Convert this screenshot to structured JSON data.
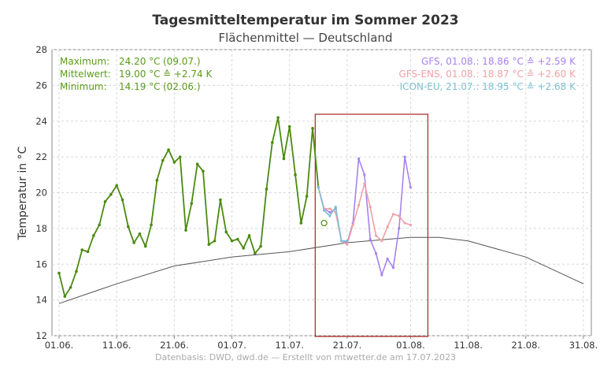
{
  "chart_data": {
    "type": "line",
    "title": "Tagesmitteltemperatur im Sommer 2023",
    "subtitle": "Flächenmittel — Deutschland",
    "ylabel": "Temperatur in °C",
    "xlabel": "",
    "ylim": [
      12,
      28
    ],
    "yticks": [
      "12",
      "14",
      "16",
      "18",
      "20",
      "22",
      "24",
      "26",
      "28"
    ],
    "x_start_date": "2023-06-01",
    "xlim": [
      "2023-06-01",
      "2023-08-31"
    ],
    "xticks": [
      {
        "date": "2023-06-01",
        "label": "01.06."
      },
      {
        "date": "2023-06-11",
        "label": "11.06."
      },
      {
        "date": "2023-06-21",
        "label": "21.06."
      },
      {
        "date": "2023-07-01",
        "label": "01.07."
      },
      {
        "date": "2023-07-11",
        "label": "11.07."
      },
      {
        "date": "2023-07-21",
        "label": "21.07."
      },
      {
        "date": "2023-08-01",
        "label": "01.08."
      },
      {
        "date": "2023-08-11",
        "label": "11.08."
      },
      {
        "date": "2023-08-21",
        "label": "21.08."
      },
      {
        "date": "2023-08-31",
        "label": "31.08."
      }
    ],
    "grid": true,
    "stats": {
      "color": "#5a9a1a",
      "rows": [
        {
          "label": "Maximum:",
          "value": "24.20 °C",
          "extra": "(09.07.)"
        },
        {
          "label": "Mittelwert:",
          "value": "19.00 °C",
          "extra": "≙ +2.74 K"
        },
        {
          "label": "Minimum:",
          "value": "14.19 °C",
          "extra": "(02.06.)"
        }
      ]
    },
    "legend": {
      "position": "top-right",
      "items": [
        {
          "text": "GFS, 01.08.:  18.86 °C  ≙ +2.59 K",
          "color": "#a782f0"
        },
        {
          "text": "GFS-ENS, 01.08.:  18.87 °C  ≙ +2.60 K",
          "color": "#f0a0a8"
        },
        {
          "text": "ICON-EU, 21.07.:  18.95 °C  ≙ +2.68 K",
          "color": "#7cc0d0"
        }
      ]
    },
    "forecast_box": {
      "x_start": "2023-07-16",
      "x_end": "2023-08-01",
      "color": "#aa2222"
    },
    "series": [
      {
        "role": "observed",
        "color": "#4a8a10",
        "x_start": "2023-06-01",
        "values": [
          15.5,
          14.2,
          14.7,
          15.6,
          16.8,
          16.7,
          17.6,
          18.2,
          19.5,
          19.9,
          20.4,
          19.6,
          18.1,
          17.2,
          17.7,
          17.0,
          18.2,
          20.7,
          21.8,
          22.4,
          21.7,
          22.0,
          17.9,
          19.4,
          21.6,
          21.2,
          17.1,
          17.3,
          19.6,
          17.8,
          17.3,
          17.4,
          16.9,
          17.6,
          16.6,
          17.0,
          20.2,
          22.8,
          24.2,
          21.9,
          23.7,
          21.0,
          18.3,
          19.8,
          23.6,
          20.3
        ]
      },
      {
        "role": "climatology",
        "color": "#555555",
        "x": [
          "2023-06-01",
          "2023-06-11",
          "2023-06-21",
          "2023-07-01",
          "2023-07-11",
          "2023-07-21",
          "2023-08-01",
          "2023-08-06",
          "2023-08-11",
          "2023-08-21",
          "2023-08-31"
        ],
        "values": [
          13.8,
          14.9,
          15.9,
          16.4,
          16.7,
          17.2,
          17.5,
          17.5,
          17.3,
          16.4,
          14.9
        ]
      },
      {
        "name": "GFS",
        "color": "#a782f0",
        "x_start": "2023-07-16",
        "values": [
          20.3,
          19.1,
          18.9,
          19.1,
          17.3,
          17.2,
          18.3,
          21.9,
          21.0,
          17.4,
          16.6,
          15.4,
          16.3,
          15.8,
          18.0,
          22.0,
          20.3
        ]
      },
      {
        "name": "GFS-ENS",
        "color": "#f0a0a8",
        "x_start": "2023-07-16",
        "values": [
          20.3,
          19.1,
          19.1,
          18.9,
          17.3,
          17.1,
          18.2,
          19.3,
          20.5,
          19.2,
          17.6,
          17.3,
          18.1,
          18.8,
          18.7,
          18.3,
          18.2
        ]
      },
      {
        "name": "ICON-EU",
        "color": "#7cc0d0",
        "x_start": "2023-07-16",
        "values": [
          20.3,
          19.0,
          18.7,
          19.2,
          17.3,
          17.3
        ]
      }
    ],
    "marker_points": [
      {
        "x": "2023-07-17",
        "y": 18.3,
        "style": "open-circle",
        "color": "#4a8a10"
      }
    ],
    "footer": "Datenbasis: DWD, dwd.de — Erstellt von mtwetter.de am 17.07.2023"
  }
}
